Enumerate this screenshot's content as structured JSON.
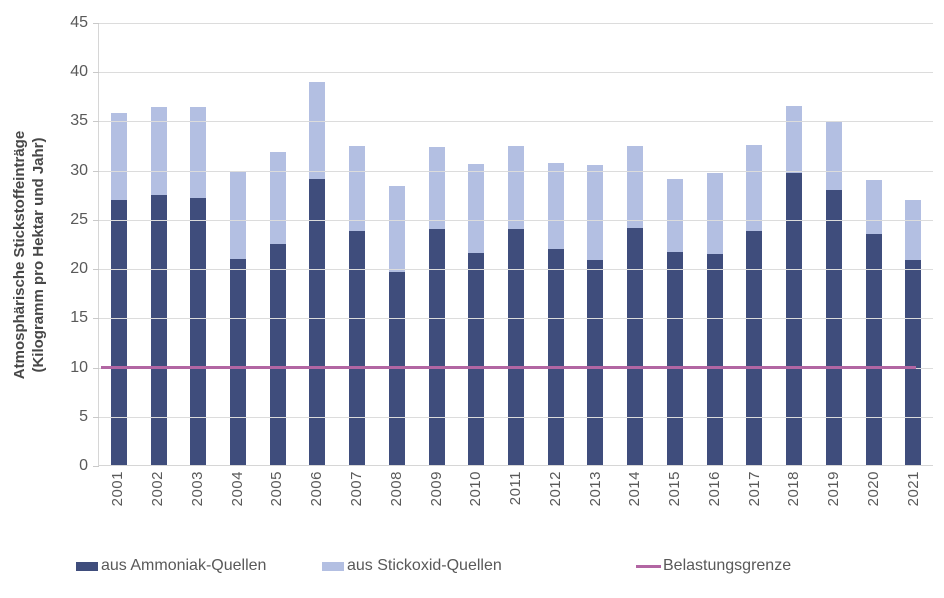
{
  "chart_data": {
    "type": "bar",
    "stacked": true,
    "title": "",
    "ylabel_line1": "Atmosphärische Stickstoffeinträge",
    "ylabel_line2": "(Kilogramm pro Hektar und Jahr)",
    "xlabel": "",
    "ylim": [
      0,
      45
    ],
    "yticks": [
      45,
      40,
      35,
      30,
      25,
      20,
      15,
      10,
      5,
      0
    ],
    "grid": true,
    "legend_position": "bottom",
    "categories": [
      "2001",
      "2002",
      "2003",
      "2004",
      "2005",
      "2006",
      "2007",
      "2008",
      "2009",
      "2010",
      "2011",
      "2012",
      "2013",
      "2014",
      "2015",
      "2016",
      "2017",
      "2018",
      "2019",
      "2020",
      "2021"
    ],
    "series": [
      {
        "name": "aus Ammoniak-Quellen",
        "color": "#3F4D7C",
        "values": [
          27.0,
          27.5,
          27.2,
          21.0,
          22.5,
          29.1,
          23.8,
          19.7,
          24.0,
          21.6,
          24.0,
          22.0,
          20.9,
          24.1,
          21.7,
          21.5,
          23.8,
          29.7,
          28.0,
          23.5,
          20.9
        ]
      },
      {
        "name": "aus Stickoxid-Quellen",
        "color": "#B3BFE2",
        "values": [
          8.8,
          8.9,
          9.3,
          8.8,
          9.4,
          9.9,
          8.7,
          8.7,
          8.4,
          9.0,
          8.5,
          8.8,
          9.6,
          8.4,
          7.4,
          8.2,
          8.8,
          6.9,
          7.0,
          5.5,
          6.1
        ]
      }
    ],
    "reference_line": {
      "label": "Belastungsgrenze",
      "value": 10,
      "color": "#B266A3"
    }
  }
}
